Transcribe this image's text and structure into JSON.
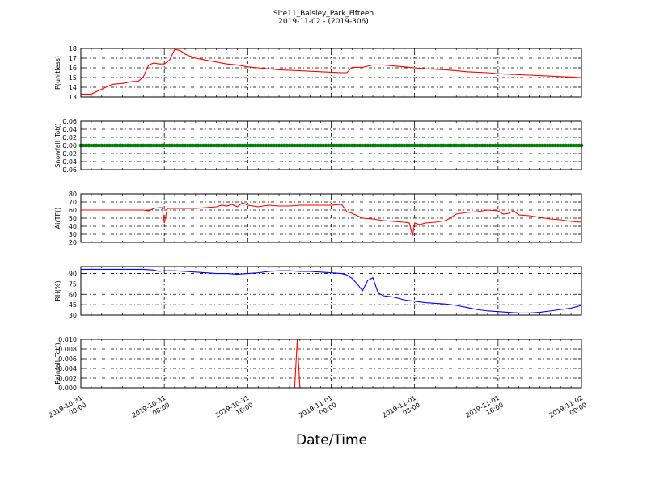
{
  "figure": {
    "title_line1": "Site11_Baisley_Park_Fifteen",
    "title_line2": "2019-11-02 - (2019-306)",
    "xlabel": "Date/Time",
    "xtick_labels": [
      [
        "2019-10-31",
        "00:00"
      ],
      [
        "2019-10-31",
        "08:00"
      ],
      [
        "2019-10-31",
        "16:00"
      ],
      [
        "2019-11-01",
        "00:00"
      ],
      [
        "2019-11-01",
        "08:00"
      ],
      [
        "2019-11-01",
        "16:00"
      ],
      [
        "2019-11-02",
        "00:00"
      ]
    ]
  },
  "chart_data": [
    {
      "type": "line",
      "ylabel": "P(unitless)",
      "color": "#ff0000",
      "ylim": [
        13,
        18
      ],
      "yticks": [
        "13",
        "14",
        "15",
        "16",
        "17",
        "18"
      ],
      "xlim": [
        0,
        48
      ],
      "grid": true,
      "x": [
        0,
        1,
        2,
        3,
        4,
        5,
        5.5,
        6,
        6.5,
        7,
        7.5,
        8,
        8.5,
        9,
        9.5,
        9.8,
        10,
        11,
        12,
        13,
        14,
        15,
        16,
        17,
        18,
        19,
        20,
        21,
        22,
        23,
        24,
        25,
        25.5,
        26,
        26.5,
        27,
        28,
        29,
        30,
        31,
        32,
        33,
        34,
        35,
        36,
        37,
        38,
        39,
        40,
        41,
        42,
        43,
        44,
        45,
        46,
        47,
        48
      ],
      "y": [
        13.3,
        13.3,
        13.8,
        14.3,
        14.4,
        14.6,
        14.6,
        15.1,
        16.3,
        16.5,
        16.4,
        16.4,
        16.8,
        17.9,
        17.8,
        17.6,
        17.4,
        17.0,
        16.8,
        16.6,
        16.4,
        16.3,
        16.1,
        16.0,
        15.9,
        15.8,
        15.75,
        15.7,
        15.65,
        15.6,
        15.55,
        15.5,
        15.5,
        16.05,
        16.05,
        16.05,
        16.3,
        16.3,
        16.2,
        16.1,
        16.0,
        15.9,
        15.85,
        15.8,
        15.7,
        15.6,
        15.55,
        15.5,
        15.4,
        15.35,
        15.3,
        15.25,
        15.2,
        15.15,
        15.1,
        15.05,
        15.0
      ]
    },
    {
      "type": "scatter",
      "ylabel": "Snowfall_Tot()",
      "color": "#008000",
      "ylim": [
        -0.06,
        0.06
      ],
      "yticks": [
        "−0.06",
        "−0.04",
        "−0.02",
        "0.00",
        "0.02",
        "0.04",
        "0.06"
      ],
      "xlim": [
        0,
        48
      ],
      "grid": true,
      "constant_value": 0.0,
      "x_start": 0,
      "x_end": 48,
      "x_step": 0.25
    },
    {
      "type": "line",
      "ylabel": "AirTF()",
      "color": "#ff0000",
      "ylim": [
        20,
        80
      ],
      "yticks": [
        "20",
        "30",
        "40",
        "50",
        "60",
        "70",
        "80"
      ],
      "xlim": [
        0,
        48
      ],
      "grid": true,
      "x": [
        0,
        2,
        4,
        6,
        6.5,
        7,
        7.5,
        7.8,
        8,
        8.3,
        9,
        10,
        11,
        12,
        13,
        13.5,
        14,
        14.5,
        15,
        15.5,
        16,
        17,
        18,
        19,
        20,
        21,
        22,
        23,
        24,
        25,
        25.5,
        26,
        27,
        28,
        29,
        30,
        31,
        31.5,
        31.8,
        32,
        32.5,
        33,
        34,
        35,
        36,
        37,
        38,
        39,
        40,
        40.5,
        41,
        41.5,
        42,
        43,
        44,
        45,
        46,
        47,
        48
      ],
      "y": [
        60,
        60,
        60,
        60,
        59,
        62,
        63,
        63,
        44,
        62,
        62,
        62,
        62,
        63,
        64,
        66,
        65,
        67,
        64,
        69,
        66,
        64,
        66,
        65,
        65,
        66,
        66,
        66,
        66,
        67,
        58,
        56,
        50,
        49,
        47,
        46,
        45,
        44,
        28,
        44,
        42,
        44,
        45,
        47,
        55,
        57,
        58,
        60,
        59,
        55,
        56,
        59,
        54,
        53,
        51,
        49,
        48,
        46,
        45
      ]
    },
    {
      "type": "line",
      "ylabel": "RH(%)",
      "color": "#0000ff",
      "ylim": [
        30,
        100
      ],
      "yticks": [
        "30",
        "45",
        "60",
        "75",
        "90"
      ],
      "xlim": [
        0,
        48
      ],
      "grid": true,
      "x": [
        0,
        2,
        4,
        6,
        7,
        7.5,
        8,
        9,
        10,
        11,
        12,
        13,
        14,
        15,
        16,
        17,
        18,
        19,
        20,
        21,
        22,
        23,
        24,
        25,
        25.5,
        26,
        26.5,
        27,
        27.5,
        28,
        28.5,
        29,
        30,
        31,
        32,
        33,
        34,
        35,
        36,
        37,
        38,
        39,
        40,
        41,
        42,
        43,
        44,
        45,
        46,
        47,
        48
      ],
      "y": [
        96,
        96,
        96,
        96,
        95,
        93,
        94,
        94,
        93,
        92,
        91,
        90,
        90,
        89,
        90,
        91,
        93,
        94,
        94,
        93,
        93,
        92,
        91,
        90,
        88,
        83,
        75,
        65,
        80,
        84,
        62,
        58,
        56,
        52,
        50,
        48,
        47,
        46,
        44,
        41,
        38,
        36,
        35,
        34,
        33,
        33,
        34,
        36,
        38,
        40,
        44
      ]
    },
    {
      "type": "line",
      "ylabel": "Rainfall_Tot()",
      "color": "#ff0000",
      "ylim": [
        0.0,
        0.01
      ],
      "yticks": [
        "0.000",
        "0.002",
        "0.004",
        "0.006",
        "0.008",
        "0.010"
      ],
      "xlim": [
        0,
        48
      ],
      "grid": true,
      "x": [
        0,
        20.5,
        20.75,
        21.0,
        48
      ],
      "y": [
        0,
        0,
        0.01,
        0,
        0
      ]
    }
  ]
}
